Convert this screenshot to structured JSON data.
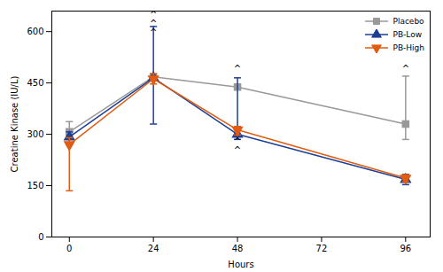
{
  "chart_data": {
    "type": "line",
    "xlabel": "Hours",
    "ylabel": "Creatine Kinase (IU/L)",
    "x": [
      0,
      24,
      48,
      96
    ],
    "series": [
      {
        "name": "Placebo",
        "color": "#999999",
        "marker": "square",
        "values": [
          307,
          468,
          438,
          330
        ],
        "yerr_low": [
          20,
          0,
          0,
          45
        ],
        "yerr_high": [
          30,
          0,
          0,
          140
        ]
      },
      {
        "name": "PB-Low",
        "color": "#1c3f96",
        "marker": "triangle-up",
        "values": [
          292,
          465,
          300,
          168
        ],
        "yerr_low": [
          20,
          135,
          15,
          15
        ],
        "yerr_high": [
          15,
          150,
          165,
          15
        ]
      },
      {
        "name": "PB-High",
        "color": "#e05c10",
        "marker": "triangle-down",
        "values": [
          270,
          462,
          313,
          172
        ],
        "yerr_low": [
          135,
          15,
          15,
          10
        ],
        "yerr_high": [
          20,
          15,
          10,
          10
        ]
      }
    ],
    "xlim": [
      -5,
      103
    ],
    "xticks": [
      0,
      24,
      48,
      72,
      96
    ],
    "ylim": [
      0,
      660
    ],
    "yticks": [
      0,
      150,
      300,
      450,
      600
    ],
    "legend": "upper right",
    "annotations": [
      {
        "x": 24,
        "y": 648,
        "text": "^"
      },
      {
        "x": 24,
        "y": 622,
        "text": "^"
      },
      {
        "x": 24,
        "y": 596,
        "text": "^"
      },
      {
        "x": 48,
        "y": 492,
        "text": "^"
      },
      {
        "x": 48,
        "y": 278,
        "text": "^"
      },
      {
        "x": 48,
        "y": 252,
        "text": "^"
      },
      {
        "x": 96,
        "y": 492,
        "text": "^"
      }
    ]
  }
}
